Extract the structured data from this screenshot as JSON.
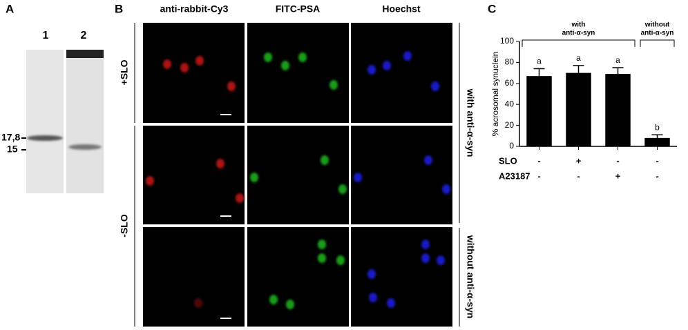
{
  "panel_a": {
    "label": "A",
    "lanes": [
      "1",
      "2"
    ],
    "markers": [
      "17,8",
      "15"
    ]
  },
  "panel_b": {
    "label": "B",
    "columns": [
      "anti-rabbit-Cy3",
      "FITC-PSA",
      "Hoechst"
    ],
    "rows": [
      "+SLO",
      "-SLO"
    ],
    "side_labels": [
      "with anti-α-syn",
      "without anti-α-syn"
    ]
  },
  "chart_data": {
    "type": "bar",
    "panel_label": "C",
    "ylabel": "% acrosomal synuclein",
    "values": [
      67,
      70,
      69,
      8
    ],
    "errors": [
      7,
      7,
      6,
      3
    ],
    "color": "#000000",
    "annotations": [
      "a",
      "a",
      "a",
      "b"
    ],
    "group_labels": [
      [
        "with",
        "anti-α-syn"
      ],
      [
        "without",
        "anti-α-syn"
      ]
    ],
    "conditions": [
      {
        "name": "SLO",
        "values": [
          "-",
          "+",
          "-",
          "-"
        ]
      },
      {
        "name": "A23187",
        "values": [
          "-",
          "-",
          "+",
          "-"
        ]
      }
    ],
    "ylim": [
      0,
      100
    ],
    "yticks": [
      0,
      20,
      40,
      60,
      80,
      100
    ]
  }
}
